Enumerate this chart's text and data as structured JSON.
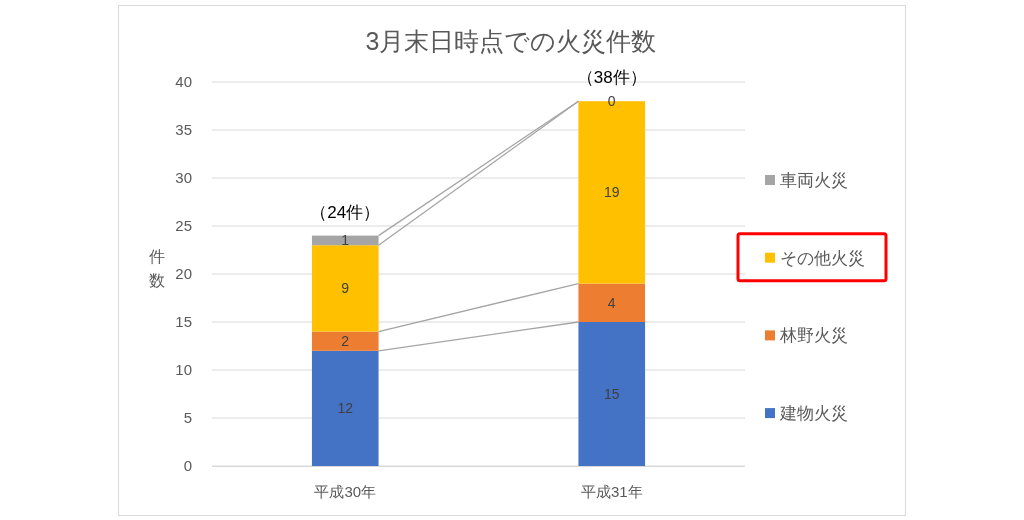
{
  "chart_data": {
    "type": "bar",
    "title": "3月末日時点での火災件数",
    "ylabel": "件数",
    "categories": [
      "平成30年",
      "平成31年"
    ],
    "stacked": true,
    "series": [
      {
        "name": "建物火災",
        "color": "#4472c4",
        "values": [
          12,
          15
        ]
      },
      {
        "name": "林野火災",
        "color": "#ed7d31",
        "values": [
          2,
          4
        ]
      },
      {
        "name": "その他火災",
        "color": "#ffc000",
        "values": [
          9,
          19
        ]
      },
      {
        "name": "車両火災",
        "color": "#a5a5a5",
        "values": [
          1,
          0
        ]
      }
    ],
    "ylim": [
      0,
      40
    ],
    "yticks": [
      0,
      5,
      10,
      15,
      20,
      25,
      30,
      35,
      40
    ],
    "grid": "y",
    "legend": "right",
    "data_labels": true,
    "totals": [
      "（24件）",
      "（38件）"
    ]
  }
}
